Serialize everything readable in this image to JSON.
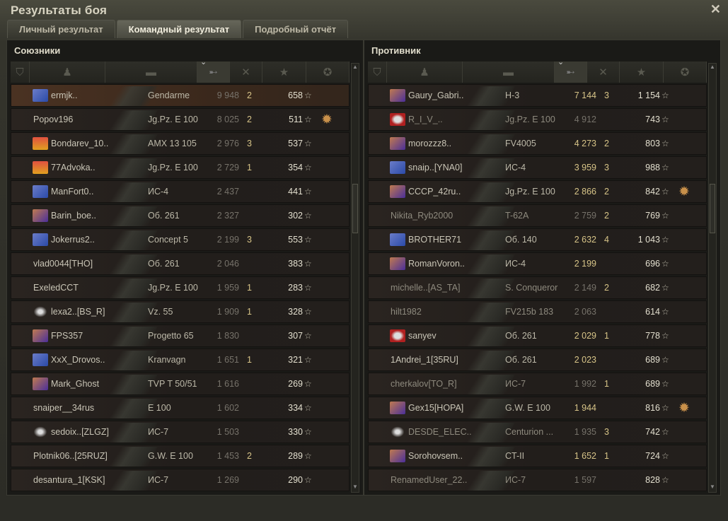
{
  "window": {
    "title": "Результаты боя",
    "close": "✕"
  },
  "tabs": [
    {
      "label": "Личный результат",
      "active": false
    },
    {
      "label": "Командный результат",
      "active": true
    },
    {
      "label": "Подробный отчёт",
      "active": false
    }
  ],
  "columns": [
    "rank-icon",
    "player-icon",
    "vehicle-icon",
    "damage-icon",
    "kills-icon",
    "xp-star-icon",
    "medal-icon"
  ],
  "sorted_column": "damage",
  "colors": {
    "gold": "#d7c488",
    "badge_blue": "#2b4aa8",
    "badge_purple": "#4a2f9a",
    "badge_red": "#b02020",
    "badge_orange": "#e07020"
  },
  "allies": {
    "title": "Союзники",
    "rows": [
      {
        "badge": "blue",
        "name": "ermjk..",
        "vehicle": "Gendarme",
        "damage": "9 948",
        "kills": "2",
        "xp": "658",
        "me": true
      },
      {
        "badge": "",
        "name": "Popov196",
        "vehicle": "Jg.Pz. E 100",
        "damage": "8 025",
        "kills": "2",
        "xp": "511",
        "medal": true
      },
      {
        "badge": "orange",
        "name": "Bondarev_10..",
        "vehicle": "AMX 13 105",
        "damage": "2 976",
        "kills": "3",
        "xp": "537"
      },
      {
        "badge": "orange",
        "name": "77Advoka..",
        "vehicle": "Jg.Pz. E 100",
        "damage": "2 729",
        "kills": "1",
        "xp": "354"
      },
      {
        "badge": "blue",
        "name": "ManFort0..",
        "vehicle": "ИС-4",
        "damage": "2 437",
        "kills": "",
        "xp": "441"
      },
      {
        "badge": "purple",
        "name": "Barin_boe..",
        "vehicle": "Об. 261",
        "damage": "2 327",
        "kills": "",
        "xp": "302"
      },
      {
        "badge": "blue",
        "name": "Jokerrus2..",
        "vehicle": "Concept 5",
        "damage": "2 199",
        "kills": "3",
        "xp": "553"
      },
      {
        "badge": "",
        "name": "vlad0044[THO]",
        "vehicle": "Об. 261",
        "damage": "2 046",
        "kills": "",
        "xp": "383"
      },
      {
        "badge": "",
        "name": "ExeledCCT",
        "vehicle": "Jg.Pz. E 100",
        "damage": "1 959",
        "kills": "1",
        "xp": "283"
      },
      {
        "badge": "diamond",
        "name": "lexa2..[BS_R]",
        "vehicle": "Vz. 55",
        "damage": "1 909",
        "kills": "1",
        "xp": "328"
      },
      {
        "badge": "purple",
        "name": "FPS357",
        "vehicle": "Progetto 65",
        "damage": "1 830",
        "kills": "",
        "xp": "307"
      },
      {
        "badge": "blue",
        "name": "XxX_Drovos..",
        "vehicle": "Kranvagn",
        "damage": "1 651",
        "kills": "1",
        "xp": "321"
      },
      {
        "badge": "purple",
        "name": "Mark_Ghost",
        "vehicle": "TVP T 50/51",
        "damage": "1 616",
        "kills": "",
        "xp": "269"
      },
      {
        "badge": "",
        "name": "snaiper__34rus",
        "vehicle": "E 100",
        "damage": "1 602",
        "kills": "",
        "xp": "334"
      },
      {
        "badge": "diamond",
        "name": "sedoix..[ZLGZ]",
        "vehicle": "ИС-7",
        "damage": "1 503",
        "kills": "",
        "xp": "330"
      },
      {
        "badge": "",
        "name": "Plotnik06..[25RUZ]",
        "vehicle": "G.W. E 100",
        "damage": "1 453",
        "kills": "2",
        "xp": "289"
      },
      {
        "badge": "",
        "name": "desantura_1[KSK]",
        "vehicle": "ИС-7",
        "damage": "1 269",
        "kills": "",
        "xp": "290"
      }
    ]
  },
  "enemies": {
    "title": "Противник",
    "rows": [
      {
        "badge": "purple",
        "name": "Gaury_Gabri..",
        "vehicle": "H-3",
        "damage": "7 144",
        "kills": "3",
        "xp": "1 154",
        "gold": true
      },
      {
        "badge": "red",
        "name": "R_I_V_..",
        "vehicle": "Jg.Pz. E 100",
        "damage": "4 912",
        "kills": "",
        "xp": "743",
        "dim": true
      },
      {
        "badge": "purple",
        "name": "morozzz8..",
        "vehicle": "FV4005",
        "damage": "4 273",
        "kills": "2",
        "xp": "803",
        "gold": true
      },
      {
        "badge": "blue",
        "name": "snaip..[YNA0]",
        "vehicle": "ИС-4",
        "damage": "3 959",
        "kills": "3",
        "xp": "988",
        "gold": true
      },
      {
        "badge": "purple",
        "name": "CCCP_42ru..",
        "vehicle": "Jg.Pz. E 100",
        "damage": "2 866",
        "kills": "2",
        "xp": "842",
        "gold": true,
        "medal": true
      },
      {
        "badge": "",
        "name": "Nikita_Ryb2000",
        "vehicle": "T-62A",
        "damage": "2 759",
        "kills": "2",
        "xp": "769",
        "dim": true
      },
      {
        "badge": "blue",
        "name": "BROTHER71",
        "vehicle": "Об. 140",
        "damage": "2 632",
        "kills": "4",
        "xp": "1 043",
        "gold": true
      },
      {
        "badge": "purple",
        "name": "RomanVoron..",
        "vehicle": "ИС-4",
        "damage": "2 199",
        "kills": "",
        "xp": "696",
        "gold": true
      },
      {
        "badge": "",
        "name": "michelle..[AS_TA]",
        "vehicle": "S. Conqueror",
        "damage": "2 149",
        "kills": "2",
        "xp": "682",
        "dim": true
      },
      {
        "badge": "",
        "name": "hilt1982",
        "vehicle": "FV215b 183",
        "damage": "2 063",
        "kills": "",
        "xp": "614",
        "dim": true
      },
      {
        "badge": "red",
        "name": "sanyev",
        "vehicle": "Об. 261",
        "damage": "2 029",
        "kills": "1",
        "xp": "778",
        "gold": true
      },
      {
        "badge": "",
        "name": "1Andrei_1[35RU]",
        "vehicle": "Об. 261",
        "damage": "2 023",
        "kills": "",
        "xp": "689",
        "gold": true
      },
      {
        "badge": "",
        "name": "cherkalov[TO_R]",
        "vehicle": "ИС-7",
        "damage": "1 992",
        "kills": "1",
        "xp": "689",
        "dim": true
      },
      {
        "badge": "purple",
        "name": "Gex15[HOPA]",
        "vehicle": "G.W. E 100",
        "damage": "1 944",
        "kills": "",
        "xp": "816",
        "gold": true,
        "medal": true
      },
      {
        "badge": "diamond",
        "name": "DESDE_ELEC..",
        "vehicle": "Centurion ...",
        "damage": "1 935",
        "kills": "3",
        "xp": "742",
        "dim": true
      },
      {
        "badge": "purple",
        "name": "Sorohovsem..",
        "vehicle": "CT-II",
        "damage": "1 652",
        "kills": "1",
        "xp": "724",
        "gold": true
      },
      {
        "badge": "",
        "name": "RenamedUser_22..",
        "vehicle": "ИС-7",
        "damage": "1 597",
        "kills": "",
        "xp": "828",
        "dim": true
      }
    ]
  }
}
